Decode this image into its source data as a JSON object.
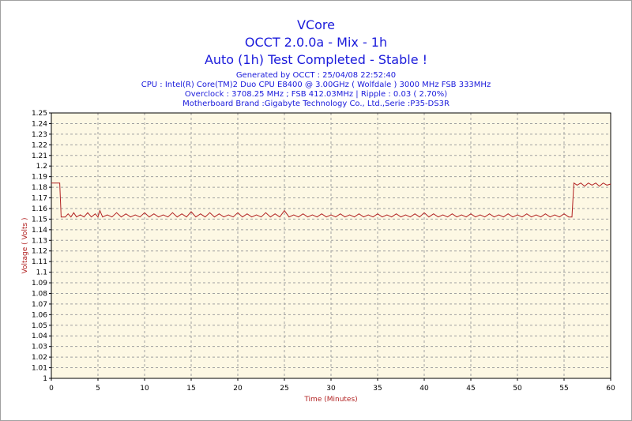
{
  "header": {
    "title1": "VCore",
    "title2": "OCCT 2.0.0a - Mix - 1h",
    "title3": "Auto (1h) Test Completed - Stable !",
    "sub1": "Generated by OCCT : 25/04/08 22:52:40",
    "sub2": "CPU : Intel(R) Core(TM)2 Duo CPU E8400 @ 3.00GHz ( Wolfdale ) 3000 MHz FSB 333MHz",
    "sub3": "Overclock : 3708.25 MHz ; FSB 412.03MHz | Ripple : 0.03 ( 2.70%)",
    "sub4": "Motherboard Brand :Gigabyte Technology Co., Ltd.,Serie :P35-DS3R"
  },
  "chart_data": {
    "type": "line",
    "title": "VCore",
    "xlabel": "Time (Minutes)",
    "ylabel": "Voltage ( Volts )",
    "xlim": [
      0,
      60
    ],
    "ylim": [
      1,
      1.25
    ],
    "x_ticks": [
      0,
      5,
      10,
      15,
      20,
      25,
      30,
      35,
      40,
      45,
      50,
      55,
      60
    ],
    "y_ticks": [
      1,
      1.01,
      1.02,
      1.03,
      1.04,
      1.05,
      1.06,
      1.07,
      1.08,
      1.09,
      1.1,
      1.11,
      1.12,
      1.13,
      1.14,
      1.15,
      1.16,
      1.17,
      1.18,
      1.19,
      1.2,
      1.21,
      1.22,
      1.23,
      1.24,
      1.25
    ],
    "grid": true,
    "line_color": "#b22222",
    "plot_background": "#fdf8e4",
    "series": [
      {
        "values": [
          [
            0,
            1.184
          ],
          [
            0.5,
            1.184
          ],
          [
            0.9,
            1.184
          ],
          [
            1.05,
            1.152
          ],
          [
            1.5,
            1.152
          ],
          [
            1.8,
            1.155
          ],
          [
            2.1,
            1.152
          ],
          [
            2.4,
            1.156
          ],
          [
            2.7,
            1.152
          ],
          [
            3.1,
            1.154
          ],
          [
            3.5,
            1.152
          ],
          [
            3.9,
            1.156
          ],
          [
            4.3,
            1.152
          ],
          [
            4.7,
            1.155
          ],
          [
            5.0,
            1.152
          ],
          [
            5.2,
            1.158
          ],
          [
            5.5,
            1.152
          ],
          [
            6.0,
            1.154
          ],
          [
            6.5,
            1.152
          ],
          [
            7.0,
            1.156
          ],
          [
            7.5,
            1.152
          ],
          [
            8.0,
            1.155
          ],
          [
            8.5,
            1.152
          ],
          [
            9.0,
            1.154
          ],
          [
            9.5,
            1.152
          ],
          [
            10.0,
            1.156
          ],
          [
            10.5,
            1.152
          ],
          [
            11.0,
            1.155
          ],
          [
            11.5,
            1.152
          ],
          [
            12.0,
            1.154
          ],
          [
            12.5,
            1.152
          ],
          [
            13.0,
            1.156
          ],
          [
            13.5,
            1.152
          ],
          [
            14.0,
            1.155
          ],
          [
            14.5,
            1.152
          ],
          [
            15.0,
            1.157
          ],
          [
            15.5,
            1.152
          ],
          [
            16.0,
            1.155
          ],
          [
            16.5,
            1.152
          ],
          [
            17.0,
            1.156
          ],
          [
            17.5,
            1.152
          ],
          [
            18.0,
            1.155
          ],
          [
            18.5,
            1.152
          ],
          [
            19.0,
            1.154
          ],
          [
            19.5,
            1.152
          ],
          [
            20.0,
            1.156
          ],
          [
            20.5,
            1.152
          ],
          [
            21.0,
            1.155
          ],
          [
            21.5,
            1.152
          ],
          [
            22.0,
            1.154
          ],
          [
            22.5,
            1.152
          ],
          [
            23.0,
            1.156
          ],
          [
            23.5,
            1.152
          ],
          [
            24.0,
            1.155
          ],
          [
            24.5,
            1.152
          ],
          [
            25.0,
            1.158
          ],
          [
            25.5,
            1.152
          ],
          [
            26.0,
            1.154
          ],
          [
            26.5,
            1.152
          ],
          [
            27.0,
            1.155
          ],
          [
            27.5,
            1.152
          ],
          [
            28.0,
            1.154
          ],
          [
            28.5,
            1.152
          ],
          [
            29.0,
            1.155
          ],
          [
            29.5,
            1.152
          ],
          [
            30.0,
            1.154
          ],
          [
            30.5,
            1.152
          ],
          [
            31.0,
            1.155
          ],
          [
            31.5,
            1.152
          ],
          [
            32.0,
            1.154
          ],
          [
            32.5,
            1.152
          ],
          [
            33.0,
            1.155
          ],
          [
            33.5,
            1.152
          ],
          [
            34.0,
            1.154
          ],
          [
            34.5,
            1.152
          ],
          [
            35.0,
            1.155
          ],
          [
            35.5,
            1.152
          ],
          [
            36.0,
            1.154
          ],
          [
            36.5,
            1.152
          ],
          [
            37.0,
            1.155
          ],
          [
            37.5,
            1.152
          ],
          [
            38.0,
            1.154
          ],
          [
            38.5,
            1.152
          ],
          [
            39.0,
            1.155
          ],
          [
            39.5,
            1.152
          ],
          [
            40.0,
            1.156
          ],
          [
            40.5,
            1.152
          ],
          [
            41.0,
            1.155
          ],
          [
            41.5,
            1.152
          ],
          [
            42.0,
            1.154
          ],
          [
            42.5,
            1.152
          ],
          [
            43.0,
            1.155
          ],
          [
            43.5,
            1.152
          ],
          [
            44.0,
            1.154
          ],
          [
            44.5,
            1.152
          ],
          [
            45.0,
            1.155
          ],
          [
            45.5,
            1.152
          ],
          [
            46.0,
            1.154
          ],
          [
            46.5,
            1.152
          ],
          [
            47.0,
            1.155
          ],
          [
            47.5,
            1.152
          ],
          [
            48.0,
            1.154
          ],
          [
            48.5,
            1.152
          ],
          [
            49.0,
            1.155
          ],
          [
            49.5,
            1.152
          ],
          [
            50.0,
            1.154
          ],
          [
            50.5,
            1.152
          ],
          [
            51.0,
            1.155
          ],
          [
            51.5,
            1.152
          ],
          [
            52.0,
            1.154
          ],
          [
            52.5,
            1.152
          ],
          [
            53.0,
            1.155
          ],
          [
            53.5,
            1.152
          ],
          [
            54.0,
            1.154
          ],
          [
            54.5,
            1.152
          ],
          [
            55.0,
            1.155
          ],
          [
            55.5,
            1.152
          ],
          [
            55.85,
            1.152
          ],
          [
            56.05,
            1.184
          ],
          [
            56.4,
            1.182
          ],
          [
            56.8,
            1.184
          ],
          [
            57.2,
            1.181
          ],
          [
            57.6,
            1.184
          ],
          [
            58.0,
            1.182
          ],
          [
            58.4,
            1.184
          ],
          [
            58.8,
            1.181
          ],
          [
            59.2,
            1.184
          ],
          [
            59.6,
            1.182
          ],
          [
            60.0,
            1.183
          ]
        ]
      }
    ]
  }
}
